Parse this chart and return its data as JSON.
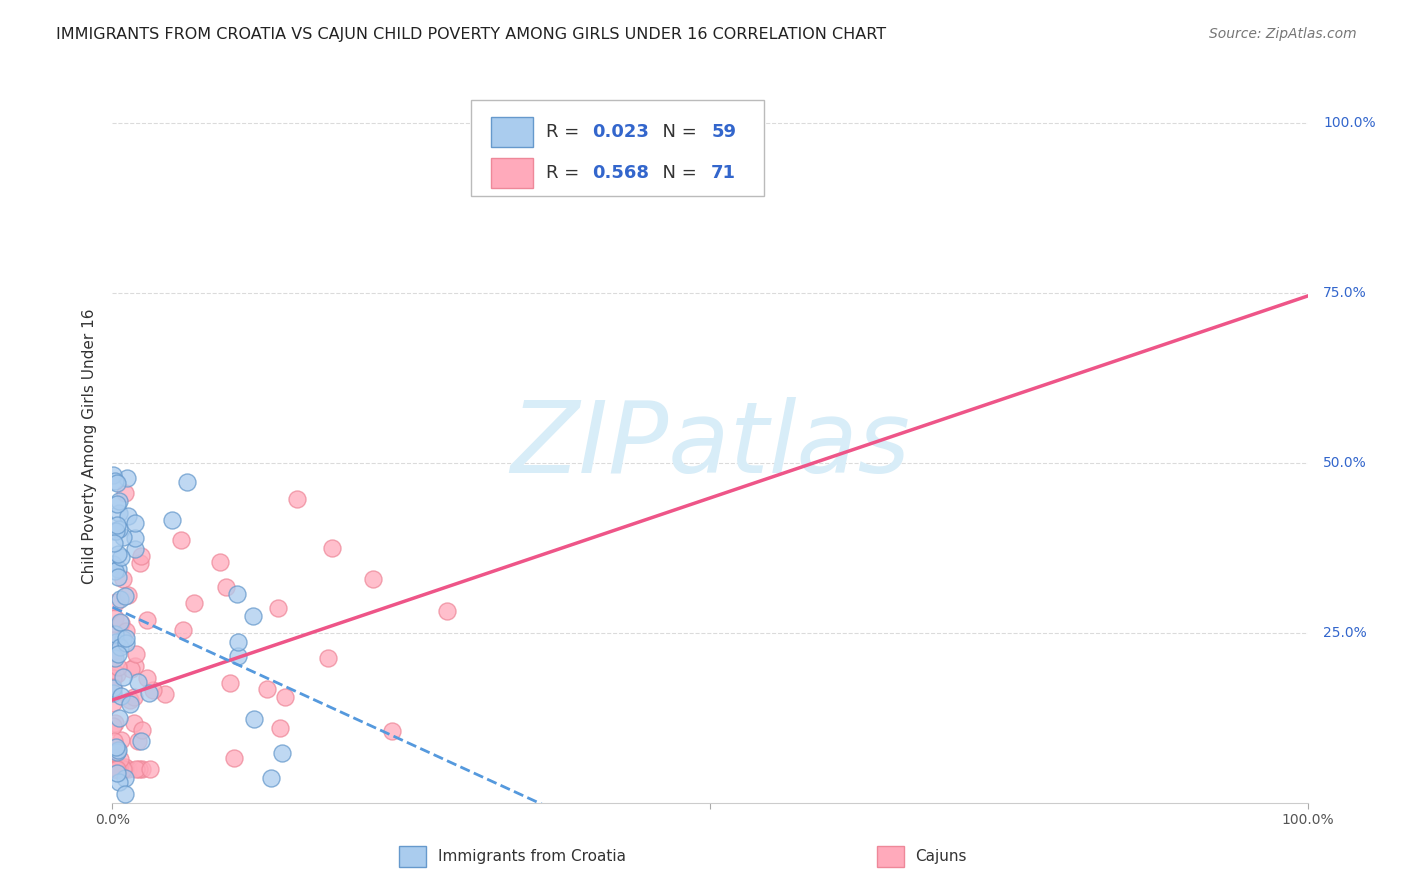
{
  "title": "IMMIGRANTS FROM CROATIA VS CAJUN CHILD POVERTY AMONG GIRLS UNDER 16 CORRELATION CHART",
  "source": "Source: ZipAtlas.com",
  "ylabel": "Child Poverty Among Girls Under 16",
  "y_ticks_labels": [
    "25.0%",
    "50.0%",
    "75.0%",
    "100.0%"
  ],
  "y_ticks_vals": [
    0.25,
    0.5,
    0.75,
    1.0
  ],
  "legend_blue_label": "Immigrants from Croatia",
  "legend_pink_label": "Cajuns",
  "xlim": [
    0,
    1.0
  ],
  "ylim": [
    0,
    1.05
  ],
  "background_color": "#ffffff",
  "grid_color": "#cccccc",
  "blue_scatter_color": "#aaccee",
  "blue_scatter_edge": "#6699cc",
  "pink_scatter_color": "#ffaabb",
  "pink_scatter_edge": "#ee8899",
  "blue_line_color": "#5599dd",
  "pink_line_color": "#ee5588",
  "watermark_text": "ZIPatlas",
  "watermark_color": "#d8edf8",
  "title_fontsize": 11.5,
  "axis_label_fontsize": 11,
  "tick_fontsize": 10,
  "legend_fontsize": 13,
  "source_fontsize": 10,
  "r_n_color": "#3366cc",
  "legend_text_color": "#333333"
}
